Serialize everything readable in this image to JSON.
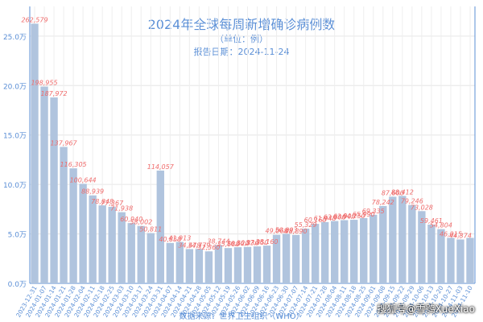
{
  "chart_data": {
    "type": "bar",
    "title": "2024年全球每周新增确诊病例数",
    "subtitle": "（单位：例）",
    "report_date": "报告日期：2024-11-24",
    "source": "数据来源：世界卫生组织（WHO）",
    "ylim": [
      0,
      280000
    ],
    "yticks": [
      {
        "value": 0,
        "label": "0.0万"
      },
      {
        "value": 50000,
        "label": "5.0万"
      },
      {
        "value": 100000,
        "label": "10.0万"
      },
      {
        "value": 150000,
        "label": "15.0万"
      },
      {
        "value": 200000,
        "label": "20.0万"
      },
      {
        "value": 250000,
        "label": "25.0万"
      }
    ],
    "grid": true,
    "bar_color": "#b0c4de",
    "label_color": "#ef6b6b",
    "categories": [
      "2023-12-31",
      "2024-01-07",
      "2024-01-14",
      "2024-01-21",
      "2024-01-28",
      "2024-02-04",
      "2024-02-11",
      "2024-02-18",
      "2024-02-25",
      "2024-03-03",
      "2024-03-10",
      "2024-03-17",
      "2024-03-24",
      "2024-03-31",
      "2024-04-07",
      "2024-04-14",
      "2024-04-21",
      "2024-04-28",
      "2024-05-05",
      "2024-05-12",
      "2024-05-19",
      "2024-05-26",
      "2024-06-02",
      "2024-06-09",
      "2024-06-16",
      "2024-06-23",
      "2024-06-30",
      "2024-07-07",
      "2024-07-14",
      "2024-07-21",
      "2024-07-28",
      "2024-08-04",
      "2024-08-11",
      "2024-08-18",
      "2024-08-25",
      "2024-09-01",
      "2024-09-08",
      "2024-09-15",
      "2024-09-22",
      "2024-09-29",
      "2024-10-06",
      "2024-10-13",
      "2024-10-20",
      "2024-10-27",
      "2024-11-03",
      "2024-11-10"
    ],
    "values": [
      262579,
      198955,
      187972,
      137967,
      116305,
      100644,
      88939,
      78848,
      77367,
      71938,
      60940,
      58002,
      50811,
      114057,
      40858,
      41913,
      34678,
      34779,
      32360,
      38744,
      35688,
      36520,
      36836,
      37350,
      38160,
      49068,
      50093,
      48890,
      55329,
      60160,
      61948,
      63000,
      63900,
      64250,
      65990,
      69335,
      78242,
      87600,
      88412,
      79246,
      73028,
      59461,
      54804,
      46015,
      44374,
      46000
    ],
    "value_labels": [
      "262,579",
      "198,955",
      "187,972",
      "137,967",
      "116,305",
      "100,644",
      "88,939",
      "78,848",
      "77,367",
      "71,938",
      "60,940",
      "58,002",
      "50,811",
      "114,057",
      "40,858",
      "41,913",
      "34,678",
      "34,779",
      "32,360",
      "38,744",
      "35,688",
      "36,520",
      "36,836",
      "37,350",
      "38,160",
      "49,068",
      "50,093",
      "48,890",
      "55,329",
      "60,160",
      "61,948",
      "63,000",
      "63,900",
      "64,250",
      "65,990",
      "69,335",
      "78,242",
      "87,600",
      "88,412",
      "79,246",
      "73,028",
      "59,461",
      "54,804",
      "46,015",
      "44,374",
      ""
    ]
  },
  "watermark": "搜狐号@雪鸮XueXiao"
}
